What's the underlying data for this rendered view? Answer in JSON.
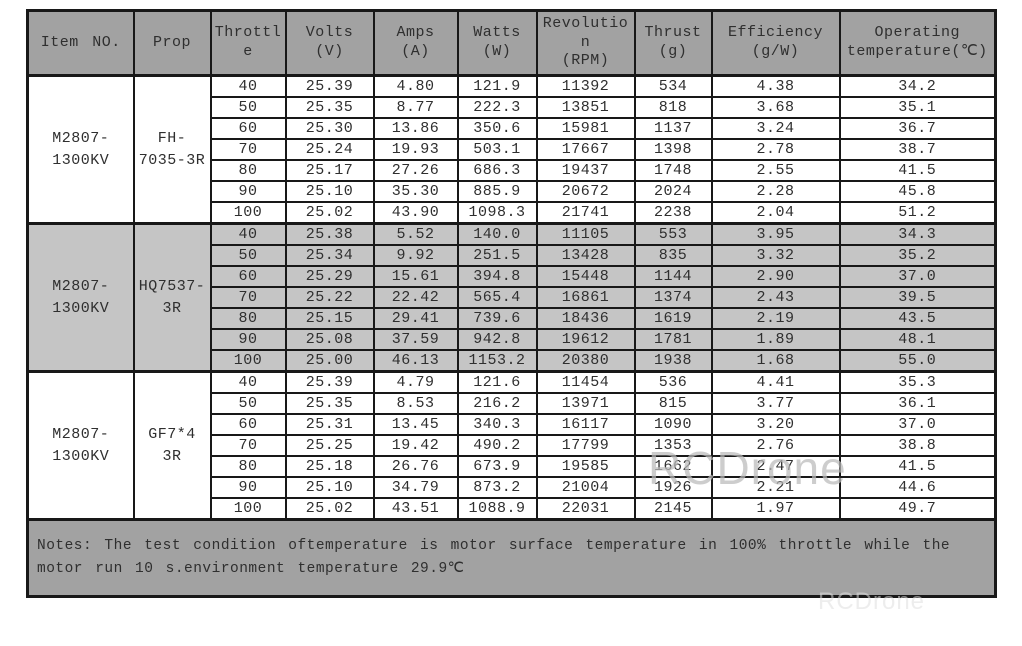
{
  "header": {
    "columns": [
      {
        "label": "Item NO.",
        "unit": ""
      },
      {
        "label": "Prop",
        "unit": ""
      },
      {
        "label": "Throttle",
        "unit": ""
      },
      {
        "label": "Volts",
        "unit": "(V)"
      },
      {
        "label": "Amps",
        "unit": "(A)"
      },
      {
        "label": "Watts",
        "unit": "(W)"
      },
      {
        "label": "Revolution",
        "unit": "(RPM)"
      },
      {
        "label": "Thrust",
        "unit": "(g)"
      },
      {
        "label": "Efficiency",
        "unit": "(g/W)"
      },
      {
        "label": "Operating temperature(℃)",
        "unit": ""
      }
    ]
  },
  "groups": [
    {
      "item_no": "M2807-\n1300KV",
      "prop": "FH-\n7035-3R",
      "shaded": false,
      "rows": [
        {
          "throttle": "40",
          "volts": "25.39",
          "amps": "4.80",
          "watts": "121.9",
          "rpm": "11392",
          "thrust": "534",
          "efficiency": "4.38",
          "temperature": "34.2"
        },
        {
          "throttle": "50",
          "volts": "25.35",
          "amps": "8.77",
          "watts": "222.3",
          "rpm": "13851",
          "thrust": "818",
          "efficiency": "3.68",
          "temperature": "35.1"
        },
        {
          "throttle": "60",
          "volts": "25.30",
          "amps": "13.86",
          "watts": "350.6",
          "rpm": "15981",
          "thrust": "1137",
          "efficiency": "3.24",
          "temperature": "36.7"
        },
        {
          "throttle": "70",
          "volts": "25.24",
          "amps": "19.93",
          "watts": "503.1",
          "rpm": "17667",
          "thrust": "1398",
          "efficiency": "2.78",
          "temperature": "38.7"
        },
        {
          "throttle": "80",
          "volts": "25.17",
          "amps": "27.26",
          "watts": "686.3",
          "rpm": "19437",
          "thrust": "1748",
          "efficiency": "2.55",
          "temperature": "41.5"
        },
        {
          "throttle": "90",
          "volts": "25.10",
          "amps": "35.30",
          "watts": "885.9",
          "rpm": "20672",
          "thrust": "2024",
          "efficiency": "2.28",
          "temperature": "45.8"
        },
        {
          "throttle": "100",
          "volts": "25.02",
          "amps": "43.90",
          "watts": "1098.3",
          "rpm": "21741",
          "thrust": "2238",
          "efficiency": "2.04",
          "temperature": "51.2"
        }
      ]
    },
    {
      "item_no": "M2807-\n1300KV",
      "prop": "HQ7537-\n3R",
      "shaded": true,
      "rows": [
        {
          "throttle": "40",
          "volts": "25.38",
          "amps": "5.52",
          "watts": "140.0",
          "rpm": "11105",
          "thrust": "553",
          "efficiency": "3.95",
          "temperature": "34.3"
        },
        {
          "throttle": "50",
          "volts": "25.34",
          "amps": "9.92",
          "watts": "251.5",
          "rpm": "13428",
          "thrust": "835",
          "efficiency": "3.32",
          "temperature": "35.2"
        },
        {
          "throttle": "60",
          "volts": "25.29",
          "amps": "15.61",
          "watts": "394.8",
          "rpm": "15448",
          "thrust": "1144",
          "efficiency": "2.90",
          "temperature": "37.0"
        },
        {
          "throttle": "70",
          "volts": "25.22",
          "amps": "22.42",
          "watts": "565.4",
          "rpm": "16861",
          "thrust": "1374",
          "efficiency": "2.43",
          "temperature": "39.5"
        },
        {
          "throttle": "80",
          "volts": "25.15",
          "amps": "29.41",
          "watts": "739.6",
          "rpm": "18436",
          "thrust": "1619",
          "efficiency": "2.19",
          "temperature": "43.5"
        },
        {
          "throttle": "90",
          "volts": "25.08",
          "amps": "37.59",
          "watts": "942.8",
          "rpm": "19612",
          "thrust": "1781",
          "efficiency": "1.89",
          "temperature": "48.1"
        },
        {
          "throttle": "100",
          "volts": "25.00",
          "amps": "46.13",
          "watts": "1153.2",
          "rpm": "20380",
          "thrust": "1938",
          "efficiency": "1.68",
          "temperature": "55.0"
        }
      ]
    },
    {
      "item_no": "M2807-\n1300KV",
      "prop": "GF7*4\n3R",
      "shaded": false,
      "rows": [
        {
          "throttle": "40",
          "volts": "25.39",
          "amps": "4.79",
          "watts": "121.6",
          "rpm": "11454",
          "thrust": "536",
          "efficiency": "4.41",
          "temperature": "35.3"
        },
        {
          "throttle": "50",
          "volts": "25.35",
          "amps": "8.53",
          "watts": "216.2",
          "rpm": "13971",
          "thrust": "815",
          "efficiency": "3.77",
          "temperature": "36.1"
        },
        {
          "throttle": "60",
          "volts": "25.31",
          "amps": "13.45",
          "watts": "340.3",
          "rpm": "16117",
          "thrust": "1090",
          "efficiency": "3.20",
          "temperature": "37.0"
        },
        {
          "throttle": "70",
          "volts": "25.25",
          "amps": "19.42",
          "watts": "490.2",
          "rpm": "17799",
          "thrust": "1353",
          "efficiency": "2.76",
          "temperature": "38.8"
        },
        {
          "throttle": "80",
          "volts": "25.18",
          "amps": "26.76",
          "watts": "673.9",
          "rpm": "19585",
          "thrust": "1662",
          "efficiency": "2.47",
          "temperature": "41.5"
        },
        {
          "throttle": "90",
          "volts": "25.10",
          "amps": "34.79",
          "watts": "873.2",
          "rpm": "21004",
          "thrust": "1926",
          "efficiency": "2.21",
          "temperature": "44.6"
        },
        {
          "throttle": "100",
          "volts": "25.02",
          "amps": "43.51",
          "watts": "1088.9",
          "rpm": "22031",
          "thrust": "2145",
          "efficiency": "1.97",
          "temperature": "49.7"
        }
      ]
    }
  ],
  "notes": "Notes: The test condition oftemperature is motor surface temperature in 100% throttle while the motor run 10 s.environment temperature 29.9℃",
  "watermark": "RCDrone",
  "colors": {
    "header_bg": "#a2a2a2",
    "shade_bg": "#c5c5c5",
    "border": "#181818",
    "page_bg": "#ffffff"
  }
}
